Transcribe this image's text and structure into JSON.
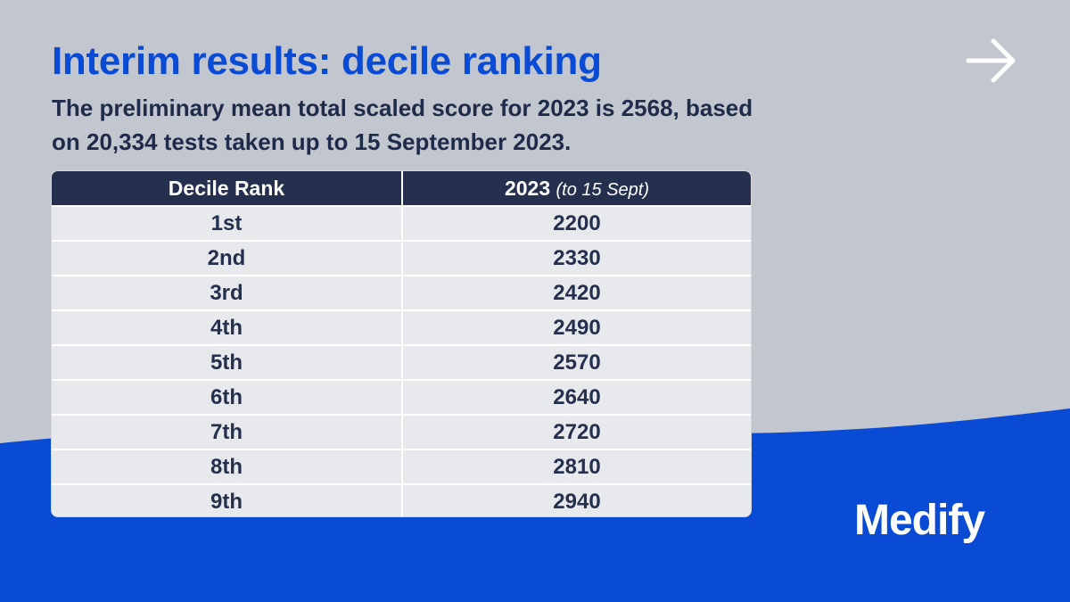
{
  "colors": {
    "background": "#c2c6ce",
    "wave": "#0a4bd6",
    "title": "#0a4bd6",
    "text": "#1f2b4a",
    "table_header": "#25304f",
    "table_row": "#e8e9ec"
  },
  "header": {
    "title": "Interim results: decile ranking",
    "subtitle": "The preliminary mean total scaled score for 2023 is 2568, based on 20,334 tests taken up to 15 September 2023.",
    "next_icon": "arrow-right-icon"
  },
  "table": {
    "col1_header": "Decile Rank",
    "col2_header_main": "2023",
    "col2_header_sub": "(to 15 Sept)",
    "rows": [
      {
        "rank": "1st",
        "score": "2200"
      },
      {
        "rank": "2nd",
        "score": "2330"
      },
      {
        "rank": "3rd",
        "score": "2420"
      },
      {
        "rank": "4th",
        "score": "2490"
      },
      {
        "rank": "5th",
        "score": "2570"
      },
      {
        "rank": "6th",
        "score": "2640"
      },
      {
        "rank": "7th",
        "score": "2720"
      },
      {
        "rank": "8th",
        "score": "2810"
      },
      {
        "rank": "9th",
        "score": "2940"
      }
    ]
  },
  "brand": {
    "logo_text": "Medify"
  }
}
